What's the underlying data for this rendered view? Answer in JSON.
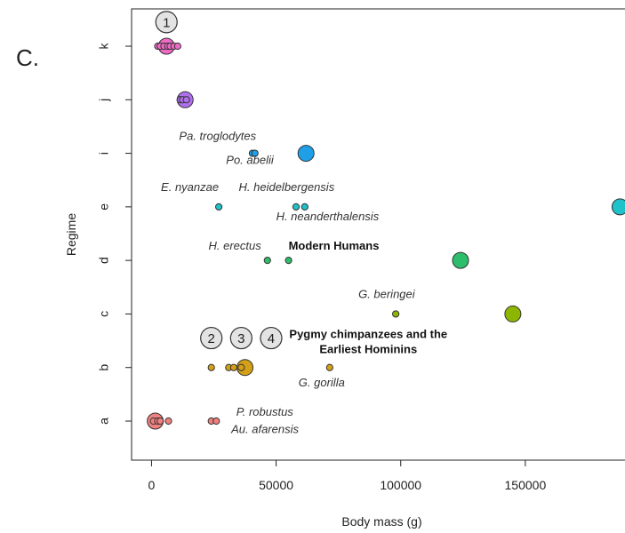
{
  "panel_label": "C.",
  "chart_data": {
    "type": "scatter",
    "xlabel": "Body mass (g)",
    "ylabel": "Regime",
    "xlim": [
      -8000,
      190000
    ],
    "x_ticks": [
      0,
      50000,
      100000,
      150000
    ],
    "x_tick_labels": [
      "0",
      "50000",
      "100000",
      "150000"
    ],
    "y_categories": [
      "a",
      "b",
      "c",
      "d",
      "e",
      "i",
      "j",
      "k"
    ],
    "grid": false,
    "legend": "none",
    "series": [
      {
        "regime": "a",
        "color": "#F08080",
        "points": [
          [
            1500,
            5.5
          ],
          [
            800,
            2
          ],
          [
            2500,
            2
          ],
          [
            3500,
            2
          ],
          [
            6800,
            2
          ],
          [
            24000,
            2
          ],
          [
            26000,
            2
          ]
        ]
      },
      {
        "regime": "b",
        "color": "#D4A017",
        "points": [
          [
            37500,
            5.5
          ],
          [
            24000,
            2
          ],
          [
            31000,
            2
          ],
          [
            33000,
            2
          ],
          [
            36000,
            2
          ],
          [
            71500,
            2
          ]
        ]
      },
      {
        "regime": "c",
        "color": "#8DB600",
        "points": [
          [
            145000,
            5.5
          ],
          [
            98000,
            2
          ]
        ]
      },
      {
        "regime": "d",
        "color": "#2DBE6C",
        "points": [
          [
            124000,
            5.5
          ],
          [
            46500,
            2
          ],
          [
            55000,
            2
          ]
        ]
      },
      {
        "regime": "e",
        "color": "#1FC2C9",
        "points": [
          [
            188000,
            5.5
          ],
          [
            27000,
            2
          ],
          [
            58000,
            2
          ],
          [
            61500,
            2
          ]
        ]
      },
      {
        "regime": "i",
        "color": "#1E9FE8",
        "points": [
          [
            62000,
            5.5
          ],
          [
            40500,
            2
          ],
          [
            41500,
            2
          ]
        ]
      },
      {
        "regime": "j",
        "color": "#B070EE",
        "points": [
          [
            13500,
            5.5
          ],
          [
            11500,
            2
          ],
          [
            12500,
            2
          ],
          [
            14000,
            2
          ]
        ]
      },
      {
        "regime": "k",
        "color": "#EE6BC5",
        "points": [
          [
            6000,
            5.5
          ],
          [
            2500,
            2
          ],
          [
            3500,
            2
          ],
          [
            5000,
            2
          ],
          [
            6500,
            2
          ],
          [
            7500,
            2
          ],
          [
            9000,
            2
          ],
          [
            10500,
            2
          ]
        ]
      }
    ],
    "annotations": [
      {
        "text": "Pa. troglodytes",
        "x": 42000,
        "y": "i",
        "dy": -0.25,
        "anchor": "end",
        "style": "italic"
      },
      {
        "text": "Po. abelii",
        "x": 49000,
        "y": "i",
        "dy": 0.2,
        "anchor": "end",
        "style": "italic"
      },
      {
        "text": "E. nyanzae",
        "x": 27000,
        "y": "e",
        "dy": -0.3,
        "anchor": "end",
        "style": "italic"
      },
      {
        "text": "H. heidelbergensis",
        "x": 35000,
        "y": "e",
        "dy": -0.3,
        "anchor": "start",
        "style": "italic"
      },
      {
        "text": "H. neanderthalensis",
        "x": 50000,
        "y": "e",
        "dy": 0.25,
        "anchor": "start",
        "style": "italic"
      },
      {
        "text": "H. erectus",
        "x": 44000,
        "y": "d",
        "dy": -0.2,
        "anchor": "end",
        "style": "italic"
      },
      {
        "text": "Modern Humans",
        "x": 55000,
        "y": "d",
        "dy": -0.2,
        "anchor": "start",
        "style": "bold"
      },
      {
        "text": "G. beringei",
        "x": 83000,
        "y": "c",
        "dy": -0.3,
        "anchor": "start",
        "style": "italic"
      },
      {
        "text": "Pygmy chimpanzees and the",
        "x": 87000,
        "y": "b",
        "dy": -0.55,
        "anchor": "middle",
        "style": "bold"
      },
      {
        "text": "Earliest Hominins",
        "x": 87000,
        "y": "b",
        "dy": -0.27,
        "anchor": "middle",
        "style": "bold"
      },
      {
        "text": "G. gorilla",
        "x": 59000,
        "y": "b",
        "dy": 0.35,
        "anchor": "start",
        "style": "italic"
      },
      {
        "text": "P. robustus",
        "x": 34000,
        "y": "a",
        "dy": -0.1,
        "anchor": "start",
        "style": "italic"
      },
      {
        "text": "Au. afarensis",
        "x": 32000,
        "y": "a",
        "dy": 0.22,
        "anchor": "start",
        "style": "italic"
      }
    ],
    "callouts": [
      {
        "label": "1",
        "x": 6000,
        "y": "k",
        "dy": -0.45
      },
      {
        "label": "2",
        "x": 24000,
        "y": "b",
        "dy": -0.55
      },
      {
        "label": "3",
        "x": 36000,
        "y": "b",
        "dy": -0.55
      },
      {
        "label": "4",
        "x": 48000,
        "y": "b",
        "dy": -0.55
      }
    ]
  }
}
